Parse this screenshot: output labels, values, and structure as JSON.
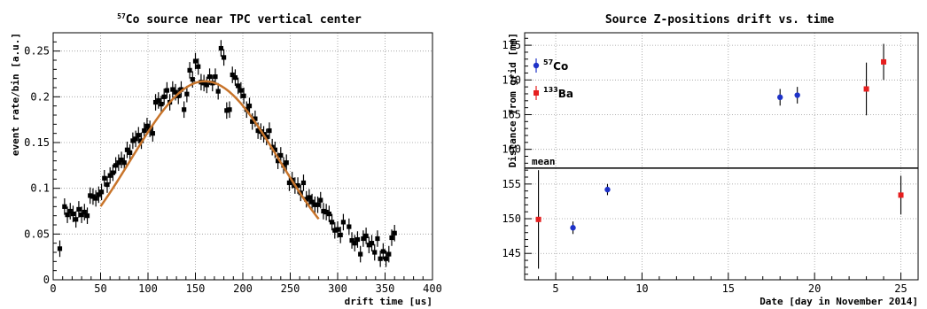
{
  "chart_data": [
    {
      "type": "scatter",
      "title_sup": "57",
      "title": "Co source near TPC vertical center",
      "xlabel": "drift time [us]",
      "ylabel": "event rate/bin [a.u.]",
      "xlim": [
        0,
        400
      ],
      "ylim": [
        0,
        0.27
      ],
      "xticks": [
        0,
        50,
        100,
        150,
        200,
        250,
        300,
        350,
        400
      ],
      "yticks": [
        0,
        0.05,
        0.1,
        0.15,
        0.2,
        0.25
      ],
      "ytick_labels": [
        "0",
        "0.05",
        "0.1",
        "0.15",
        "0.2",
        "0.25"
      ],
      "grid": true,
      "series": [
        {
          "marker_color": "#000000",
          "points": [
            [
              7,
              0.034
            ],
            [
              12,
              0.08
            ],
            [
              15,
              0.071
            ],
            [
              18,
              0.075
            ],
            [
              21,
              0.072
            ],
            [
              24,
              0.066
            ],
            [
              27,
              0.077
            ],
            [
              30,
              0.071
            ],
            [
              33,
              0.074
            ],
            [
              36,
              0.07
            ],
            [
              39,
              0.092
            ],
            [
              42,
              0.091
            ],
            [
              45,
              0.089
            ],
            [
              48,
              0.093
            ],
            [
              51,
              0.096
            ],
            [
              54,
              0.111
            ],
            [
              57,
              0.104
            ],
            [
              60,
              0.114
            ],
            [
              63,
              0.117
            ],
            [
              66,
              0.125
            ],
            [
              69,
              0.128
            ],
            [
              72,
              0.131
            ],
            [
              75,
              0.128
            ],
            [
              78,
              0.142
            ],
            [
              81,
              0.139
            ],
            [
              84,
              0.152
            ],
            [
              87,
              0.154
            ],
            [
              90,
              0.158
            ],
            [
              93,
              0.152
            ],
            [
              96,
              0.163
            ],
            [
              99,
              0.168
            ],
            [
              102,
              0.165
            ],
            [
              105,
              0.16
            ],
            [
              108,
              0.194
            ],
            [
              111,
              0.196
            ],
            [
              114,
              0.192
            ],
            [
              117,
              0.2
            ],
            [
              120,
              0.207
            ],
            [
              123,
              0.194
            ],
            [
              126,
              0.208
            ],
            [
              129,
              0.205
            ],
            [
              132,
              0.201
            ],
            [
              135,
              0.208
            ],
            [
              138,
              0.186
            ],
            [
              141,
              0.203
            ],
            [
              144,
              0.229
            ],
            [
              147,
              0.219
            ],
            [
              150,
              0.239
            ],
            [
              153,
              0.233
            ],
            [
              156,
              0.216
            ],
            [
              159,
              0.215
            ],
            [
              162,
              0.213
            ],
            [
              165,
              0.222
            ],
            [
              168,
              0.215
            ],
            [
              171,
              0.222
            ],
            [
              174,
              0.206
            ],
            [
              177,
              0.253
            ],
            [
              180,
              0.243
            ],
            [
              183,
              0.185
            ],
            [
              186,
              0.186
            ],
            [
              189,
              0.224
            ],
            [
              192,
              0.221
            ],
            [
              195,
              0.212
            ],
            [
              198,
              0.207
            ],
            [
              201,
              0.201
            ],
            [
              204,
              0.186
            ],
            [
              207,
              0.19
            ],
            [
              210,
              0.173
            ],
            [
              213,
              0.176
            ],
            [
              216,
              0.163
            ],
            [
              219,
              0.162
            ],
            [
              222,
              0.159
            ],
            [
              225,
              0.156
            ],
            [
              228,
              0.163
            ],
            [
              231,
              0.145
            ],
            [
              234,
              0.142
            ],
            [
              237,
              0.13
            ],
            [
              240,
              0.136
            ],
            [
              243,
              0.125
            ],
            [
              246,
              0.128
            ],
            [
              249,
              0.106
            ],
            [
              252,
              0.109
            ],
            [
              255,
              0.103
            ],
            [
              258,
              0.103
            ],
            [
              261,
              0.095
            ],
            [
              264,
              0.106
            ],
            [
              267,
              0.088
            ],
            [
              270,
              0.09
            ],
            [
              273,
              0.085
            ],
            [
              276,
              0.082
            ],
            [
              279,
              0.082
            ],
            [
              282,
              0.087
            ],
            [
              285,
              0.075
            ],
            [
              288,
              0.074
            ],
            [
              291,
              0.072
            ],
            [
              294,
              0.063
            ],
            [
              297,
              0.054
            ],
            [
              300,
              0.055
            ],
            [
              303,
              0.049
            ],
            [
              306,
              0.063
            ],
            [
              312,
              0.058
            ],
            [
              315,
              0.043
            ],
            [
              318,
              0.04
            ],
            [
              321,
              0.044
            ],
            [
              324,
              0.028
            ],
            [
              327,
              0.045
            ],
            [
              330,
              0.048
            ],
            [
              333,
              0.038
            ],
            [
              336,
              0.04
            ],
            [
              339,
              0.03
            ],
            [
              342,
              0.045
            ],
            [
              345,
              0.023
            ],
            [
              348,
              0.031
            ],
            [
              351,
              0.023
            ],
            [
              354,
              0.028
            ],
            [
              357,
              0.046
            ],
            [
              360,
              0.051
            ]
          ],
          "y_error": 0.009
        }
      ],
      "fit": {
        "type": "gaussian",
        "color": "#c8742a",
        "amplitude": 0.217,
        "mean": 160,
        "sigma": 78,
        "x_range": [
          50,
          280
        ]
      }
    },
    {
      "type": "scatter",
      "title": "Source Z-positions drift vs. time",
      "xlabel": "Date [day in November 2014]",
      "ylabel": "Distance from grid [mm]",
      "xlim": [
        3.2,
        26
      ],
      "ylim": [
        141.2,
        176.8
      ],
      "xticks": [
        5,
        10,
        15,
        20,
        25
      ],
      "yticks": [
        145,
        150,
        155,
        160,
        165,
        170,
        175
      ],
      "grid": true,
      "reference_line": {
        "y": 157.3,
        "label": "mean"
      },
      "legend": [
        {
          "sup": "57",
          "name": "Co",
          "color": "#1e32c8"
        },
        {
          "sup": "133",
          "name": "Ba",
          "color": "#e61e1e"
        }
      ],
      "series": [
        {
          "name": "57Co",
          "color": "#1e32c8",
          "marker": "circle",
          "points": [
            {
              "x": 6,
              "y": 148.7,
              "err": 0.9
            },
            {
              "x": 8,
              "y": 154.2,
              "err": 0.8
            },
            {
              "x": 18,
              "y": 167.5,
              "err": 1.2
            },
            {
              "x": 19,
              "y": 167.8,
              "err": 1.2
            }
          ]
        },
        {
          "name": "133Ba",
          "color": "#e61e1e",
          "marker": "square",
          "points": [
            {
              "x": 4,
              "y": 149.9,
              "err": 7.1
            },
            {
              "x": 23,
              "y": 168.7,
              "err": 3.8
            },
            {
              "x": 24,
              "y": 172.6,
              "err": 2.6
            },
            {
              "x": 25,
              "y": 153.4,
              "err": 2.8
            }
          ]
        }
      ]
    }
  ]
}
